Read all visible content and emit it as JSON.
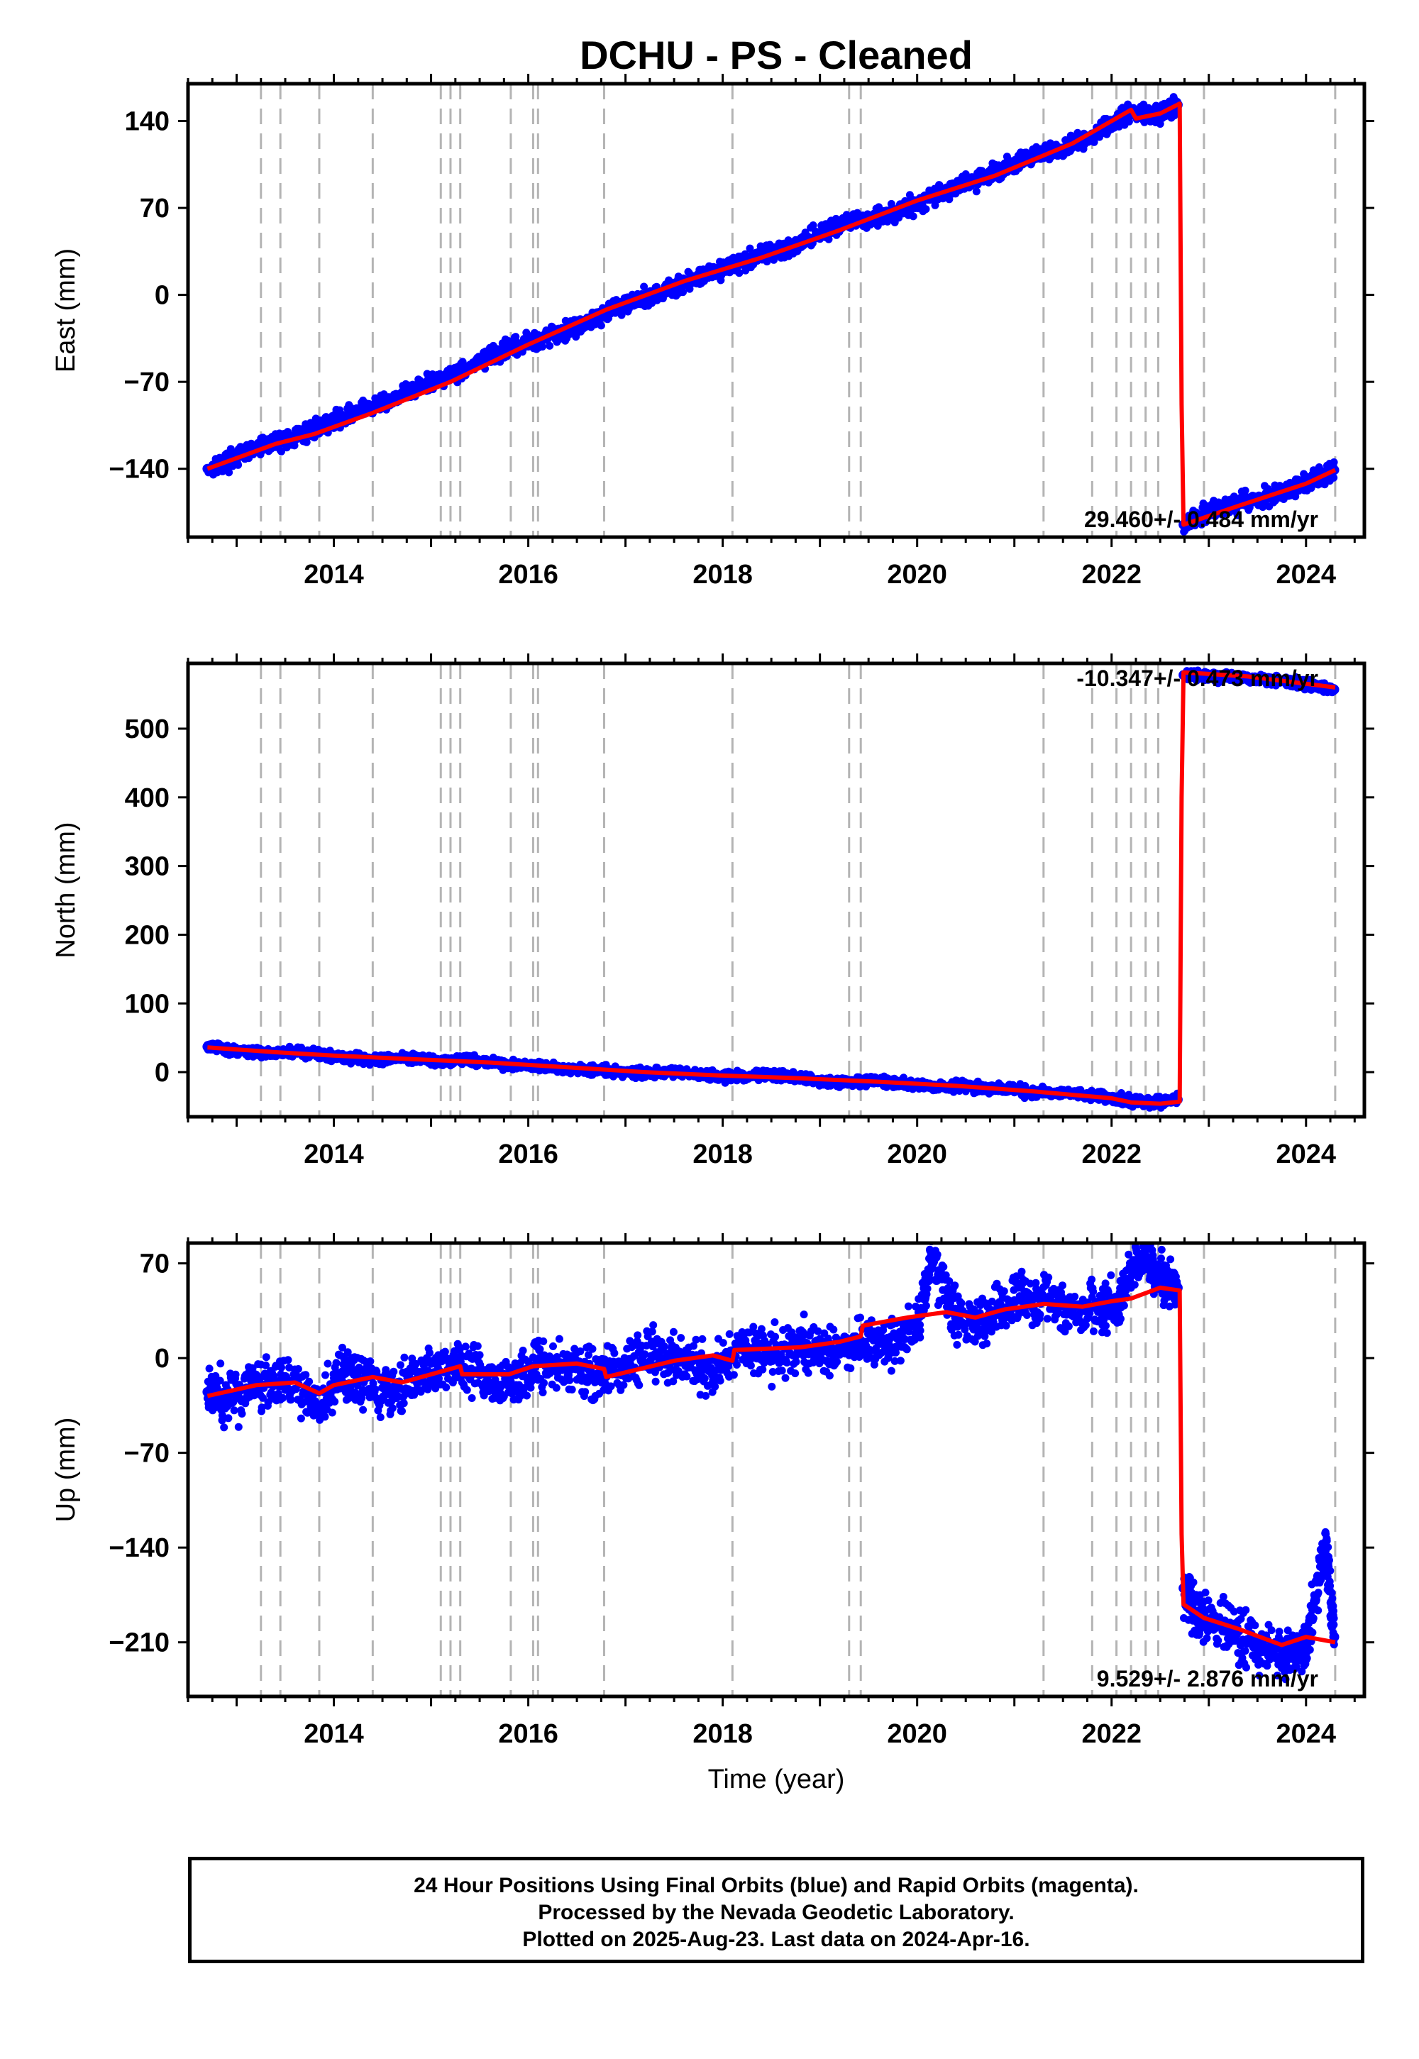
{
  "title": "DCHU  - PS - Cleaned",
  "xlabel": "Time (year)",
  "footer": {
    "line1": "24 Hour Positions Using Final Orbits (blue) and Rapid Orbits (magenta).",
    "line2": "Processed by the Nevada Geodetic Laboratory.",
    "line3": "Plotted on 2025-Aug-23. Last data on 2024-Apr-16."
  },
  "colors": {
    "final_orbits": "#0000ff",
    "model": "#ff0000",
    "event_lines": "#b4b4b4"
  },
  "chart_data": [
    {
      "type": "scatter",
      "component": "East",
      "ylabel": "East (mm)",
      "xlim": [
        2012.5,
        2024.6
      ],
      "ylim": [
        -195,
        170
      ],
      "yticks": [
        140,
        70,
        0,
        -70,
        -140
      ],
      "xticks": [
        2014,
        2016,
        2018,
        2020,
        2022,
        2024
      ],
      "grid": false,
      "rate_label": "29.460+/- 0.484 mm/yr",
      "event_lines": [
        2013.25,
        2013.45,
        2013.85,
        2014.4,
        2015.1,
        2015.2,
        2015.3,
        2015.82,
        2016.05,
        2016.1,
        2016.78,
        2018.1,
        2019.3,
        2019.42,
        2021.3,
        2021.8,
        2022.05,
        2022.2,
        2022.35,
        2022.48,
        2022.95,
        2024.3
      ],
      "series": [
        {
          "role": "final-orbit-positions",
          "x": [
            2012.7,
            2013.0,
            2013.3,
            2013.6,
            2013.9,
            2014.2,
            2014.5,
            2014.8,
            2015.1,
            2015.4,
            2015.7,
            2016.0,
            2016.3,
            2016.6,
            2016.9,
            2017.2,
            2017.5,
            2017.8,
            2018.1,
            2018.4,
            2018.7,
            2019.0,
            2019.3,
            2019.6,
            2019.9,
            2020.2,
            2020.5,
            2020.8,
            2021.1,
            2021.4,
            2021.7,
            2022.0,
            2022.2,
            2022.45,
            2022.68,
            2022.74,
            2023.0,
            2023.3,
            2023.6,
            2023.9,
            2024.1,
            2024.29
          ],
          "y": [
            -140,
            -131,
            -120,
            -115,
            -104,
            -95,
            -87,
            -77,
            -67,
            -58,
            -47,
            -38,
            -31,
            -22,
            -10,
            -2,
            6,
            16,
            24,
            32,
            39,
            50,
            58,
            63,
            70,
            81,
            90,
            98,
            110,
            115,
            124,
            137,
            148,
            145,
            153,
            -185,
            -174,
            -169,
            -162,
            -155,
            -148,
            -141
          ]
        },
        {
          "role": "model-fit",
          "x": [
            2012.7,
            2013.4,
            2013.8,
            2014.4,
            2015.2,
            2016.0,
            2016.8,
            2017.6,
            2018.4,
            2019.2,
            2020.0,
            2020.8,
            2021.6,
            2022.2,
            2022.25,
            2022.5,
            2022.7,
            2022.72,
            2022.74,
            2023.3,
            2024.0,
            2024.3
          ],
          "y": [
            -140,
            -120,
            -112,
            -95,
            -70,
            -40,
            -12,
            11,
            30,
            52,
            76,
            96,
            122,
            149,
            142,
            146,
            154,
            -88,
            -185,
            -170,
            -152,
            -141
          ]
        }
      ]
    },
    {
      "type": "scatter",
      "component": "North",
      "ylabel": "North (mm)",
      "xlim": [
        2012.5,
        2024.6
      ],
      "ylim": [
        -65,
        595
      ],
      "yticks": [
        500,
        400,
        300,
        200,
        100,
        0
      ],
      "xticks": [
        2014,
        2016,
        2018,
        2020,
        2022,
        2024
      ],
      "grid": false,
      "rate_label": "-10.347+/- 0.473 mm/yr",
      "event_lines": [
        2013.25,
        2013.45,
        2013.85,
        2014.4,
        2015.1,
        2015.2,
        2015.3,
        2015.82,
        2016.05,
        2016.1,
        2016.78,
        2018.1,
        2019.3,
        2019.42,
        2021.3,
        2021.8,
        2022.05,
        2022.2,
        2022.35,
        2022.48,
        2022.95,
        2024.3
      ],
      "series": [
        {
          "role": "final-orbit-positions",
          "x": [
            2012.7,
            2013.0,
            2013.3,
            2013.6,
            2013.9,
            2014.2,
            2014.5,
            2014.8,
            2015.1,
            2015.4,
            2015.7,
            2016.0,
            2016.3,
            2016.6,
            2016.9,
            2017.2,
            2017.5,
            2017.8,
            2018.1,
            2018.4,
            2018.7,
            2019.0,
            2019.3,
            2019.6,
            2019.9,
            2020.2,
            2020.5,
            2020.8,
            2021.1,
            2021.4,
            2021.7,
            2022.0,
            2022.2,
            2022.45,
            2022.68,
            2022.74,
            2023.0,
            2023.3,
            2023.6,
            2023.9,
            2024.1,
            2024.29
          ],
          "y": [
            37,
            31,
            28,
            30,
            25,
            21,
            18,
            22,
            15,
            18,
            12,
            9,
            6,
            4,
            1,
            -2,
            0,
            -3,
            -7,
            -4,
            -6,
            -13,
            -15,
            -12,
            -18,
            -22,
            -21,
            -24,
            -28,
            -30,
            -33,
            -37,
            -42,
            -44,
            -40,
            578,
            577,
            573,
            570,
            566,
            562,
            557
          ]
        },
        {
          "role": "model-fit",
          "x": [
            2012.7,
            2013.4,
            2014.0,
            2014.8,
            2015.6,
            2016.4,
            2017.2,
            2018.0,
            2018.8,
            2019.6,
            2020.4,
            2021.2,
            2022.0,
            2022.2,
            2022.5,
            2022.7,
            2022.72,
            2022.74,
            2023.4,
            2024.3
          ],
          "y": [
            36,
            29,
            24,
            19,
            14,
            7,
            0,
            -5,
            -9,
            -14,
            -20,
            -28,
            -38,
            -44,
            -46,
            -43,
            400,
            582,
            576,
            560
          ]
        }
      ]
    },
    {
      "type": "scatter",
      "component": "Up",
      "ylabel": "Up (mm)",
      "xlim": [
        2012.5,
        2024.6
      ],
      "ylim": [
        -250,
        85
      ],
      "yticks": [
        70,
        0,
        -70,
        -140,
        -210
      ],
      "xticks": [
        2014,
        2016,
        2018,
        2020,
        2022,
        2024
      ],
      "grid": false,
      "rate_label": "9.529+/- 2.876 mm/yr",
      "event_lines": [
        2013.25,
        2013.45,
        2013.85,
        2014.4,
        2015.1,
        2015.2,
        2015.3,
        2015.82,
        2016.05,
        2016.1,
        2016.78,
        2018.1,
        2019.3,
        2019.42,
        2021.3,
        2021.8,
        2022.05,
        2022.2,
        2022.35,
        2022.48,
        2022.95,
        2024.3
      ],
      "series": [
        {
          "role": "final-orbit-positions",
          "x": [
            2012.7,
            2012.9,
            2013.2,
            2013.5,
            2013.85,
            2014.1,
            2014.3,
            2014.6,
            2014.9,
            2015.2,
            2015.5,
            2015.8,
            2016.1,
            2016.4,
            2016.7,
            2017.0,
            2017.3,
            2017.6,
            2017.9,
            2018.2,
            2018.5,
            2018.8,
            2019.1,
            2019.4,
            2019.7,
            2020.0,
            2020.15,
            2020.4,
            2020.7,
            2021.0,
            2021.3,
            2021.6,
            2021.9,
            2022.1,
            2022.35,
            2022.5,
            2022.68,
            2022.74,
            2022.9,
            2023.2,
            2023.5,
            2023.8,
            2024.0,
            2024.2,
            2024.29
          ],
          "y": [
            -25,
            -32,
            -18,
            -14,
            -38,
            -10,
            -16,
            -22,
            -14,
            -5,
            -12,
            -20,
            -3,
            -8,
            -14,
            -4,
            2,
            -2,
            -10,
            8,
            2,
            10,
            4,
            14,
            10,
            24,
            74,
            30,
            26,
            42,
            44,
            38,
            36,
            44,
            82,
            56,
            52,
            -170,
            -192,
            -200,
            -214,
            -220,
            -212,
            -140,
            -206
          ]
        },
        {
          "role": "model-fit",
          "x": [
            2012.7,
            2013.2,
            2013.6,
            2013.85,
            2014.0,
            2014.4,
            2014.7,
            2015.1,
            2015.3,
            2015.32,
            2015.8,
            2016.05,
            2016.5,
            2016.78,
            2016.8,
            2017.5,
            2017.9,
            2018.1,
            2018.12,
            2018.8,
            2019.2,
            2019.42,
            2019.44,
            2019.9,
            2020.3,
            2020.6,
            2020.9,
            2021.3,
            2021.7,
            2022.0,
            2022.2,
            2022.5,
            2022.7,
            2022.72,
            2022.74,
            2022.95,
            2023.3,
            2023.75,
            2024.0,
            2024.3
          ],
          "y": [
            -28,
            -20,
            -18,
            -26,
            -20,
            -14,
            -18,
            -10,
            -6,
            -12,
            -12,
            -6,
            -4,
            -8,
            -14,
            -2,
            2,
            -2,
            6,
            8,
            12,
            16,
            24,
            30,
            34,
            30,
            36,
            40,
            38,
            42,
            44,
            52,
            50,
            -130,
            -182,
            -192,
            -200,
            -212,
            -206,
            -210
          ]
        }
      ]
    }
  ]
}
